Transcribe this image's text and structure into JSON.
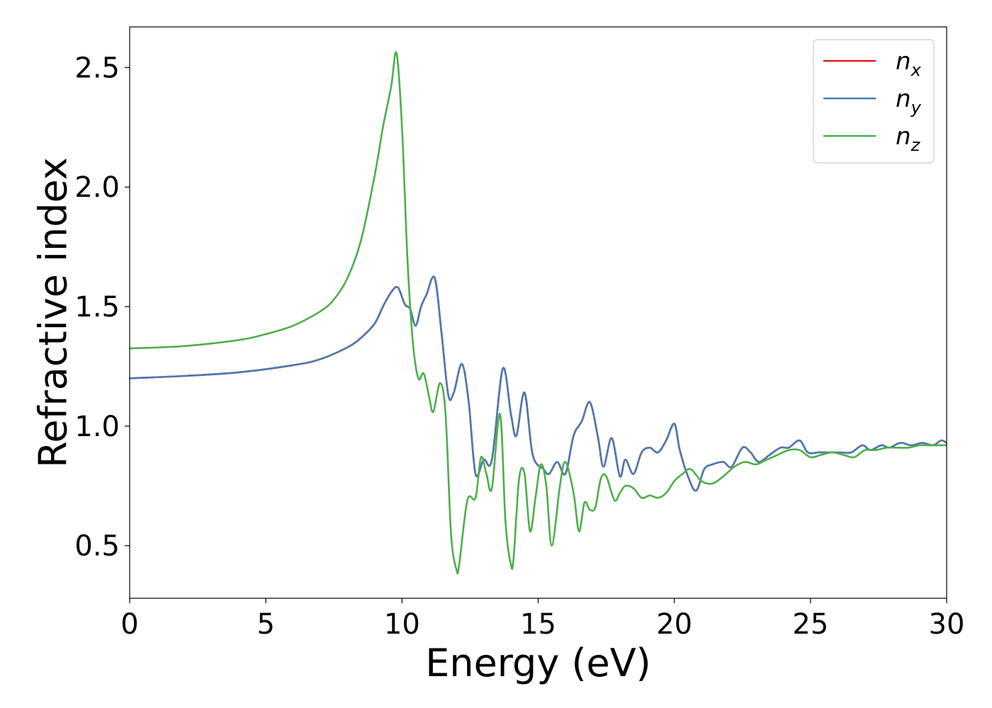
{
  "chart_data": {
    "type": "line",
    "title": "",
    "xlabel": "Energy (eV)",
    "ylabel": "Refractive index",
    "xlim": [
      0,
      30
    ],
    "ylim": [
      0.28,
      2.67
    ],
    "xticks": [
      0,
      5,
      10,
      15,
      20,
      25,
      30
    ],
    "xtick_labels": [
      "0",
      "5",
      "10",
      "15",
      "20",
      "25",
      "30"
    ],
    "yticks": [
      0.5,
      1.0,
      1.5,
      2.0,
      2.5
    ],
    "ytick_labels": [
      "0.5",
      "1.0",
      "1.5",
      "2.0",
      "2.5"
    ],
    "grid": false,
    "legend_position": "top-right",
    "series": [
      {
        "name": "n",
        "sub": "x",
        "color": "#e41a1c",
        "x": [
          0,
          2,
          4,
          6,
          7,
          8,
          8.5,
          9,
          9.3,
          9.6,
          9.85,
          10.1,
          10.3,
          10.5,
          10.7,
          10.9,
          11.2,
          11.45,
          11.7,
          11.9,
          12.2,
          12.45,
          12.7,
          13.0,
          13.3,
          13.7,
          14.0,
          14.2,
          14.5,
          14.8,
          15.2,
          15.4,
          15.7,
          16.0,
          16.3,
          16.6,
          16.9,
          17.2,
          17.4,
          17.7,
          18.0,
          18.2,
          18.5,
          18.8,
          19.1,
          19.4,
          19.7,
          20.0,
          20.2,
          20.5,
          20.8,
          21.1,
          21.4,
          21.8,
          22.1,
          22.5,
          22.8,
          23.1,
          23.5,
          23.9,
          24.2,
          24.6,
          24.9,
          25.3,
          25.7,
          26.1,
          26.5,
          26.9,
          27.2,
          27.6,
          27.9,
          28.3,
          28.7,
          29.1,
          29.5,
          29.8,
          30
        ],
        "y": [
          1.2,
          1.21,
          1.225,
          1.255,
          1.28,
          1.33,
          1.37,
          1.43,
          1.5,
          1.56,
          1.58,
          1.51,
          1.49,
          1.42,
          1.5,
          1.55,
          1.62,
          1.39,
          1.13,
          1.14,
          1.26,
          1.1,
          0.8,
          0.86,
          0.86,
          1.24,
          1.05,
          0.96,
          1.14,
          0.88,
          0.82,
          0.8,
          0.85,
          0.8,
          0.96,
          1.02,
          1.1,
          0.95,
          0.83,
          0.95,
          0.79,
          0.86,
          0.8,
          0.89,
          0.91,
          0.89,
          0.94,
          1.01,
          0.9,
          0.79,
          0.73,
          0.82,
          0.84,
          0.85,
          0.83,
          0.91,
          0.89,
          0.85,
          0.88,
          0.91,
          0.91,
          0.94,
          0.89,
          0.89,
          0.89,
          0.89,
          0.89,
          0.92,
          0.9,
          0.92,
          0.91,
          0.93,
          0.92,
          0.93,
          0.92,
          0.94,
          0.93
        ]
      },
      {
        "name": "n",
        "sub": "y",
        "color": "#4a7bb0",
        "x": [
          0,
          2,
          4,
          6,
          7,
          8,
          8.5,
          9,
          9.3,
          9.6,
          9.85,
          10.1,
          10.3,
          10.5,
          10.7,
          10.9,
          11.2,
          11.45,
          11.7,
          11.9,
          12.2,
          12.45,
          12.7,
          13.0,
          13.3,
          13.7,
          14.0,
          14.2,
          14.5,
          14.8,
          15.2,
          15.4,
          15.7,
          16.0,
          16.3,
          16.6,
          16.9,
          17.2,
          17.4,
          17.7,
          18.0,
          18.2,
          18.5,
          18.8,
          19.1,
          19.4,
          19.7,
          20.0,
          20.2,
          20.5,
          20.8,
          21.1,
          21.4,
          21.8,
          22.1,
          22.5,
          22.8,
          23.1,
          23.5,
          23.9,
          24.2,
          24.6,
          24.9,
          25.3,
          25.7,
          26.1,
          26.5,
          26.9,
          27.2,
          27.6,
          27.9,
          28.3,
          28.7,
          29.1,
          29.5,
          29.8,
          30
        ],
        "y": [
          1.2,
          1.21,
          1.225,
          1.255,
          1.28,
          1.33,
          1.37,
          1.43,
          1.5,
          1.56,
          1.58,
          1.51,
          1.49,
          1.42,
          1.5,
          1.55,
          1.62,
          1.39,
          1.13,
          1.14,
          1.26,
          1.1,
          0.8,
          0.86,
          0.86,
          1.24,
          1.05,
          0.96,
          1.14,
          0.88,
          0.82,
          0.8,
          0.85,
          0.8,
          0.96,
          1.02,
          1.1,
          0.95,
          0.83,
          0.95,
          0.79,
          0.86,
          0.8,
          0.89,
          0.91,
          0.89,
          0.94,
          1.01,
          0.9,
          0.79,
          0.73,
          0.82,
          0.84,
          0.85,
          0.83,
          0.91,
          0.89,
          0.85,
          0.88,
          0.91,
          0.91,
          0.94,
          0.89,
          0.89,
          0.89,
          0.89,
          0.89,
          0.92,
          0.9,
          0.92,
          0.91,
          0.93,
          0.92,
          0.93,
          0.92,
          0.94,
          0.93
        ]
      },
      {
        "name": "n",
        "sub": "z",
        "color": "#4daf4a",
        "x": [
          0,
          2,
          4,
          5,
          6,
          7,
          7.5,
          8,
          8.5,
          9,
          9.3,
          9.6,
          9.8,
          10.0,
          10.2,
          10.4,
          10.6,
          10.8,
          11.0,
          11.15,
          11.4,
          11.6,
          11.8,
          12.0,
          12.1,
          12.4,
          12.7,
          12.9,
          13.1,
          13.3,
          13.6,
          13.8,
          14.0,
          14.1,
          14.3,
          14.5,
          14.7,
          14.9,
          15.1,
          15.3,
          15.5,
          15.8,
          16.0,
          16.3,
          16.5,
          16.7,
          16.9,
          17.1,
          17.3,
          17.5,
          17.8,
          18.0,
          18.2,
          18.5,
          18.8,
          19.1,
          19.4,
          19.7,
          20.0,
          20.3,
          20.6,
          21.0,
          21.4,
          21.8,
          22.2,
          22.6,
          23.0,
          23.4,
          23.8,
          24.2,
          24.6,
          25.0,
          25.4,
          25.8,
          26.2,
          26.6,
          27.0,
          27.4,
          27.8,
          28.2,
          28.6,
          29.0,
          29.4,
          29.8,
          30
        ],
        "y": [
          1.325,
          1.335,
          1.36,
          1.385,
          1.42,
          1.48,
          1.53,
          1.62,
          1.78,
          2.05,
          2.25,
          2.42,
          2.56,
          2.25,
          1.7,
          1.35,
          1.2,
          1.22,
          1.12,
          1.06,
          1.18,
          1.05,
          0.55,
          0.4,
          0.42,
          0.69,
          0.7,
          0.87,
          0.8,
          0.74,
          1.05,
          0.6,
          0.42,
          0.45,
          0.78,
          0.8,
          0.56,
          0.7,
          0.84,
          0.75,
          0.5,
          0.75,
          0.85,
          0.72,
          0.56,
          0.68,
          0.65,
          0.66,
          0.78,
          0.79,
          0.69,
          0.72,
          0.75,
          0.74,
          0.7,
          0.71,
          0.7,
          0.72,
          0.77,
          0.8,
          0.82,
          0.77,
          0.76,
          0.79,
          0.83,
          0.85,
          0.84,
          0.86,
          0.88,
          0.9,
          0.9,
          0.87,
          0.88,
          0.89,
          0.88,
          0.87,
          0.9,
          0.9,
          0.91,
          0.91,
          0.91,
          0.92,
          0.92,
          0.92,
          0.92
        ]
      }
    ]
  }
}
